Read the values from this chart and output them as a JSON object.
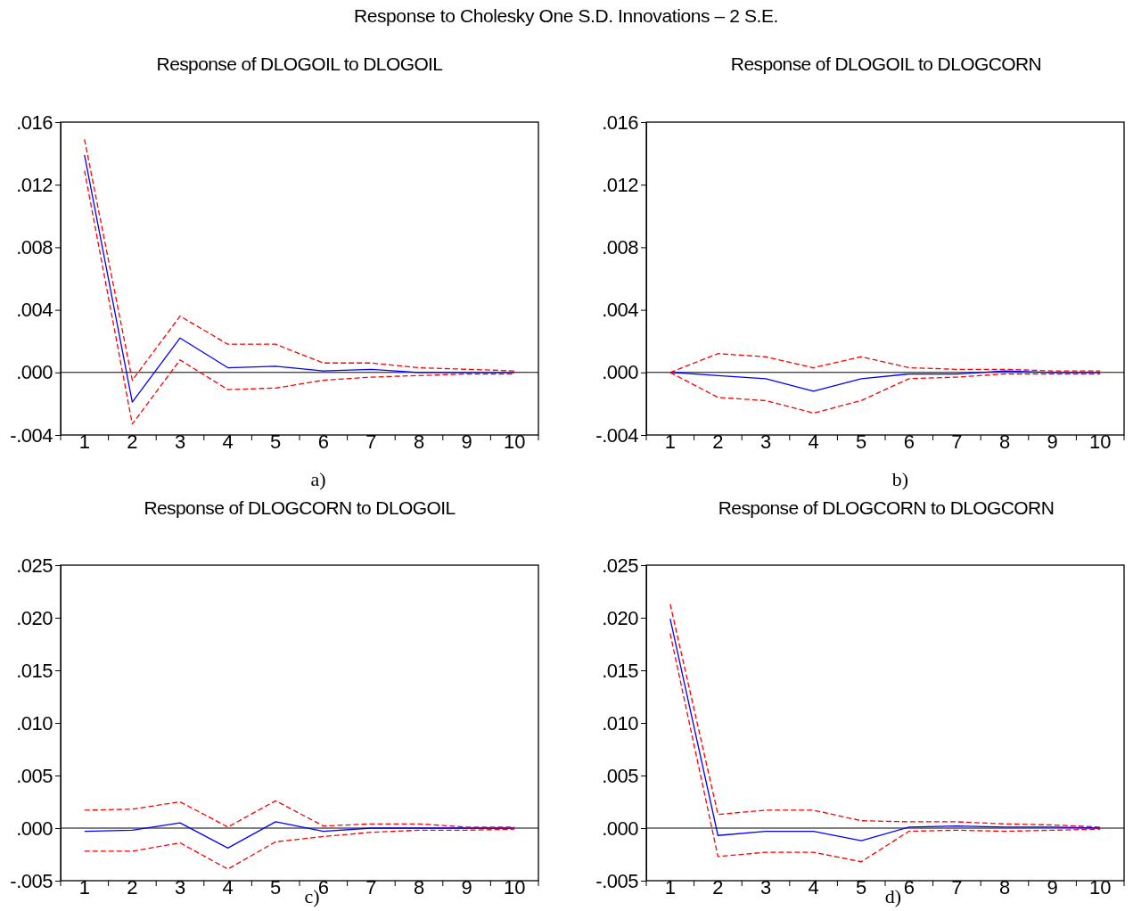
{
  "chart_data": [
    {
      "type": "line",
      "title": "Response of DLOGOIL to DLOGOIL",
      "annotations": [
        "Response to Cholesky One S.D. Innovations – 2 S.E.",
        "a)"
      ],
      "categories": [
        "1",
        "2",
        "3",
        "4",
        "5",
        "6",
        "7",
        "8",
        "9",
        "10"
      ],
      "ylim": [
        -0.004,
        0.016
      ],
      "yticks": [
        {
          "value": -0.004,
          "label": "-.004"
        },
        {
          "value": 0,
          "label": ".000"
        },
        {
          "value": 0.004,
          "label": ".004"
        },
        {
          "value": 0.008,
          "label": ".008"
        },
        {
          "value": 0.012,
          "label": ".012"
        },
        {
          "value": 0.016,
          "label": ".016"
        }
      ],
      "ref_lines": [
        {
          "axis": "y",
          "value": 0,
          "color": "#000000"
        }
      ],
      "series": [
        {
          "color": "#0000ff",
          "line_style": "solid",
          "values": [
            0.0139,
            -0.0019,
            0.0022,
            0.0003,
            0.0004,
            0.0001,
            0.0002,
            0.0,
            0.0,
            0.0
          ]
        },
        {
          "color": "#ff0000",
          "line_style": "dashed",
          "values": [
            0.0149,
            -0.0005,
            0.0036,
            0.0018,
            0.0018,
            0.0006,
            0.0006,
            0.0003,
            0.0002,
            0.0001
          ]
        },
        {
          "color": "#ff0000",
          "line_style": "dashed",
          "values": [
            0.0129,
            -0.0033,
            0.0008,
            -0.0011,
            -0.001,
            -0.0005,
            -0.0003,
            -0.0002,
            -0.0001,
            -0.0001
          ]
        }
      ]
    },
    {
      "type": "line",
      "title": "Response of DLOGOIL to DLOGCORN",
      "annotations": [
        "b)"
      ],
      "categories": [
        "1",
        "2",
        "3",
        "4",
        "5",
        "6",
        "7",
        "8",
        "9",
        "10"
      ],
      "ylim": [
        -0.004,
        0.016
      ],
      "yticks": [
        {
          "value": -0.004,
          "label": "-.004"
        },
        {
          "value": 0,
          "label": ".000"
        },
        {
          "value": 0.004,
          "label": ".004"
        },
        {
          "value": 0.008,
          "label": ".008"
        },
        {
          "value": 0.012,
          "label": ".012"
        },
        {
          "value": 0.016,
          "label": ".016"
        }
      ],
      "ref_lines": [
        {
          "axis": "y",
          "value": 0,
          "color": "#000000"
        }
      ],
      "series": [
        {
          "color": "#0000ff",
          "line_style": "solid",
          "values": [
            0.0,
            -0.0002,
            -0.0004,
            -0.0012,
            -0.0004,
            -0.0001,
            -0.0001,
            0.0001,
            0.0,
            0.0
          ]
        },
        {
          "color": "#ff0000",
          "line_style": "dashed",
          "values": [
            0.0,
            0.0012,
            0.001,
            0.0003,
            0.001,
            0.0003,
            0.0002,
            0.0002,
            0.0001,
            0.0001
          ]
        },
        {
          "color": "#ff0000",
          "line_style": "dashed",
          "values": [
            0.0,
            -0.0016,
            -0.0018,
            -0.0026,
            -0.0018,
            -0.0004,
            -0.0003,
            -0.0001,
            -0.0001,
            -0.0001
          ]
        }
      ]
    },
    {
      "type": "line",
      "title": "Response of DLOGCORN to DLOGOIL",
      "annotations": [
        "c)"
      ],
      "categories": [
        "1",
        "2",
        "3",
        "4",
        "5",
        "6",
        "7",
        "8",
        "9",
        "10"
      ],
      "ylim": [
        -0.005,
        0.025
      ],
      "yticks": [
        {
          "value": -0.005,
          "label": "-.005"
        },
        {
          "value": 0,
          "label": ".000"
        },
        {
          "value": 0.005,
          "label": ".005"
        },
        {
          "value": 0.01,
          "label": ".010"
        },
        {
          "value": 0.015,
          "label": ".015"
        },
        {
          "value": 0.02,
          "label": ".020"
        },
        {
          "value": 0.025,
          "label": ".025"
        }
      ],
      "ref_lines": [
        {
          "axis": "y",
          "value": 0,
          "color": "#000000"
        }
      ],
      "series": [
        {
          "color": "#0000ff",
          "line_style": "solid",
          "values": [
            -0.0003,
            -0.0002,
            0.0005,
            -0.0019,
            0.0006,
            -0.0003,
            0.0,
            0.0,
            0.0,
            0.0
          ]
        },
        {
          "color": "#ff0000",
          "line_style": "dashed",
          "values": [
            0.0017,
            0.0018,
            0.0025,
            0.0001,
            0.0026,
            0.0002,
            0.0004,
            0.0004,
            0.0001,
            0.0001
          ]
        },
        {
          "color": "#ff0000",
          "line_style": "dashed",
          "values": [
            -0.0022,
            -0.0022,
            -0.0014,
            -0.0039,
            -0.0013,
            -0.0008,
            -0.0004,
            -0.0002,
            -0.0002,
            -0.0001
          ]
        }
      ]
    },
    {
      "type": "line",
      "title": "Response of DLOGCORN to DLOGCORN",
      "annotations": [
        "d)"
      ],
      "categories": [
        "1",
        "2",
        "3",
        "4",
        "5",
        "6",
        "7",
        "8",
        "9",
        "10"
      ],
      "ylim": [
        -0.005,
        0.025
      ],
      "yticks": [
        {
          "value": -0.005,
          "label": "-.005"
        },
        {
          "value": 0,
          "label": ".000"
        },
        {
          "value": 0.005,
          "label": ".005"
        },
        {
          "value": 0.01,
          "label": ".010"
        },
        {
          "value": 0.015,
          "label": ".015"
        },
        {
          "value": 0.02,
          "label": ".020"
        },
        {
          "value": 0.025,
          "label": ".025"
        }
      ],
      "ref_lines": [
        {
          "axis": "y",
          "value": 0,
          "color": "#000000"
        }
      ],
      "series": [
        {
          "color": "#0000ff",
          "line_style": "solid",
          "values": [
            0.0199,
            -0.0007,
            -0.0003,
            -0.0003,
            -0.0012,
            0.0001,
            0.0002,
            0.0001,
            0.0001,
            0.0
          ]
        },
        {
          "color": "#ff0000",
          "line_style": "dashed",
          "values": [
            0.0213,
            0.0013,
            0.0017,
            0.0017,
            0.0007,
            0.0006,
            0.0006,
            0.0004,
            0.0003,
            0.0001
          ]
        },
        {
          "color": "#ff0000",
          "line_style": "dashed",
          "values": [
            0.0185,
            -0.0027,
            -0.0023,
            -0.0023,
            -0.0032,
            -0.0003,
            -0.0002,
            -0.0003,
            -0.0002,
            -0.0001
          ]
        }
      ]
    }
  ]
}
